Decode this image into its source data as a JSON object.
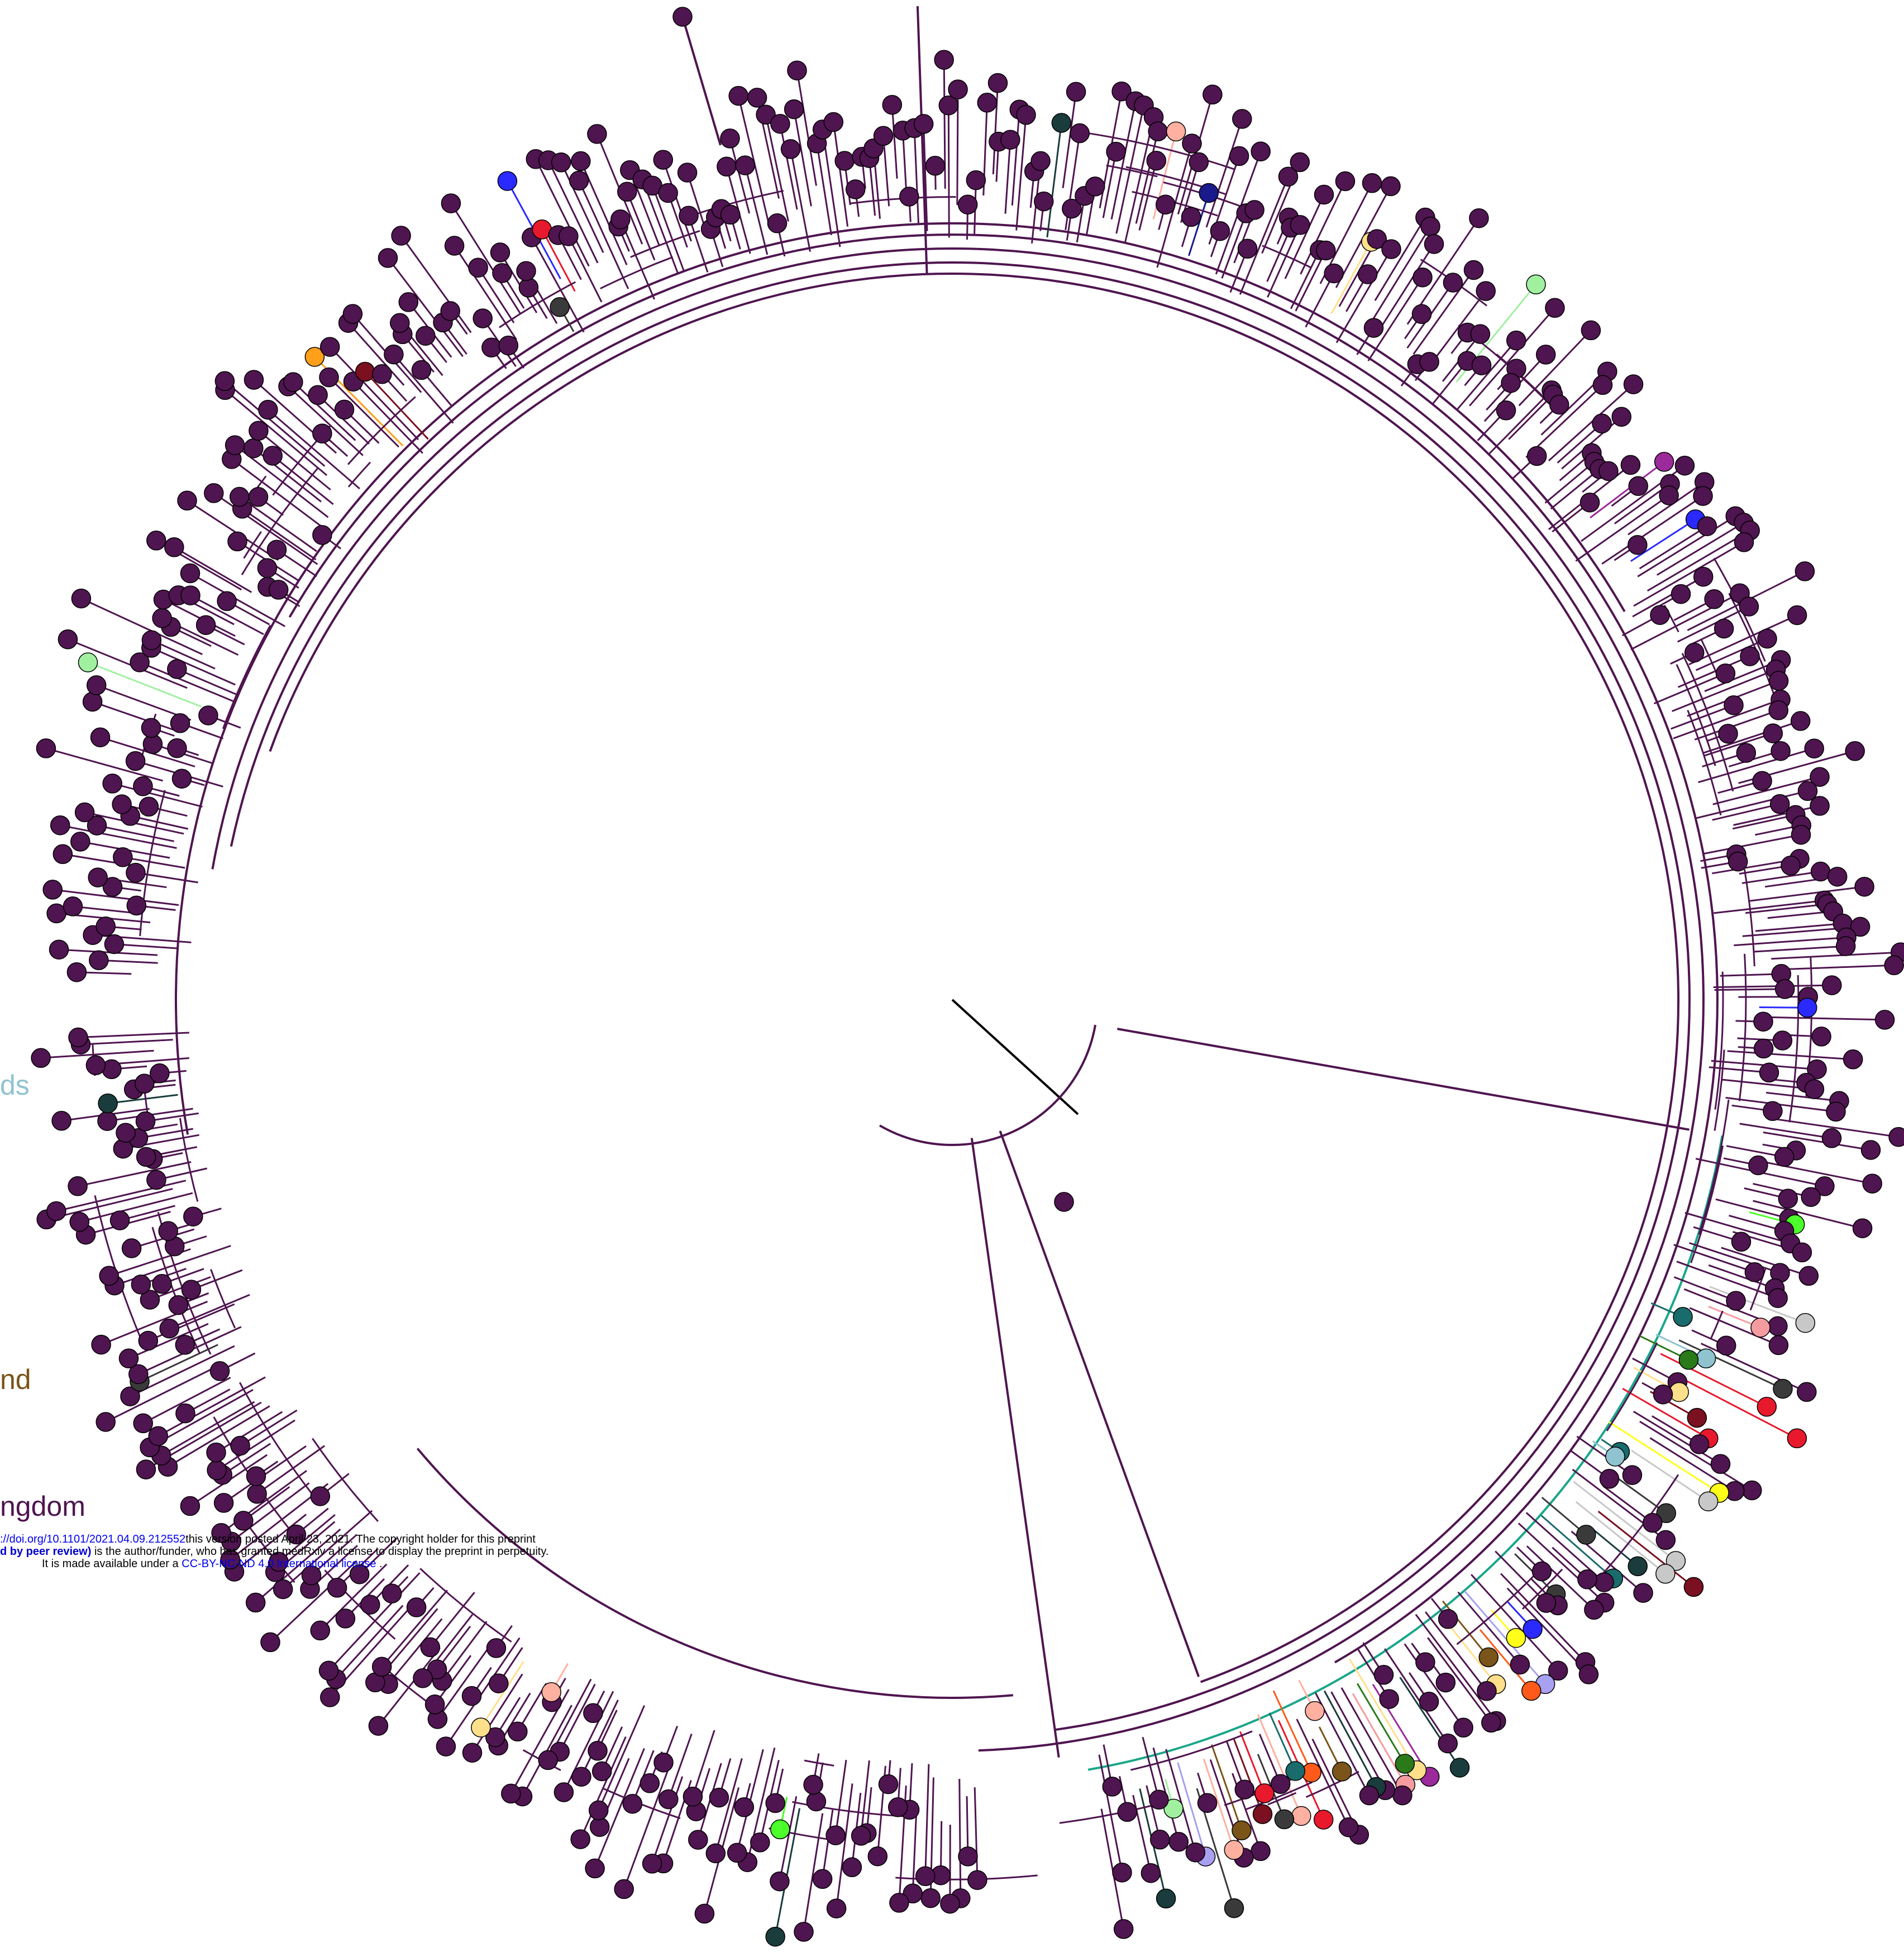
{
  "legend": {
    "netherlands": {
      "text": "ds",
      "color": "#8fc3cf"
    },
    "finland": {
      "text": "nd",
      "color": "#7a5418"
    },
    "united_kingdom": {
      "text": "ngdom",
      "color": "#4f1550"
    }
  },
  "watermark": {
    "line1_link": "://doi.org/10.1101/2021.04.09.212552",
    "line1_text": "this version posted April 23, 2021. The copyright holder for this preprint",
    "line2_bold": "d by peer review)",
    "line2_text": " is the author/funder, who has granted medRxiv a license to display the preprint in perpetuity.",
    "line3_text": "It is made available under a ",
    "line3_link": "CC-BY-NC-ND 4.0 International license",
    "line3_end": " ."
  },
  "tree": {
    "branch_color": "#4f1550",
    "default_tip_color": "#4f1550",
    "highlight_colors": [
      "#1aa68a",
      "#4cff2a",
      "#ff9f1a",
      "#e8192c",
      "#c8c8c8",
      "#1a6b6b",
      "#ffb0a0",
      "#f59ca0",
      "#1a1a8c",
      "#9b2a9b",
      "#ff5a1a",
      "#8fc3cf",
      "#ffe08a",
      "#7a5418",
      "#ffff1a",
      "#a8a0f0",
      "#2a7a1a",
      "#7a1020",
      "#3a3a3a",
      "#a0f0a0",
      "#1a3c3c",
      "#2a2aff"
    ]
  }
}
